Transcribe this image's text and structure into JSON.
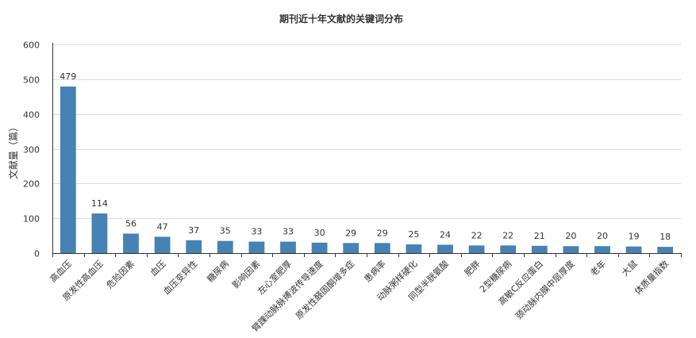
{
  "chart_data": {
    "type": "bar",
    "title": "期刊近十年文献的关键词分布",
    "ylabel": "文献量（篇）",
    "xlabel": "",
    "ylim": [
      0,
      600
    ],
    "yticks": [
      0,
      100,
      200,
      300,
      400,
      500,
      600
    ],
    "grid": true,
    "bar_color": "#4682b4",
    "categories": [
      "高血压",
      "原发性高血压",
      "危险因素",
      "血压",
      "血压变异性",
      "糖尿病",
      "影响因素",
      "左心室肥厚",
      "臂踝动脉脉搏波传导速度",
      "原发性醛固酮增多症",
      "患病率",
      "动脉粥样硬化",
      "同型半胱氨酸",
      "肥胖",
      "2型糖尿病",
      "高敏C反应蛋白",
      "颈动脉内膜中层厚度",
      "老年",
      "大鼠",
      "体质量指数"
    ],
    "values": [
      479,
      114,
      56,
      47,
      37,
      35,
      33,
      33,
      30,
      29,
      29,
      25,
      24,
      22,
      22,
      21,
      20,
      20,
      19,
      18
    ]
  }
}
